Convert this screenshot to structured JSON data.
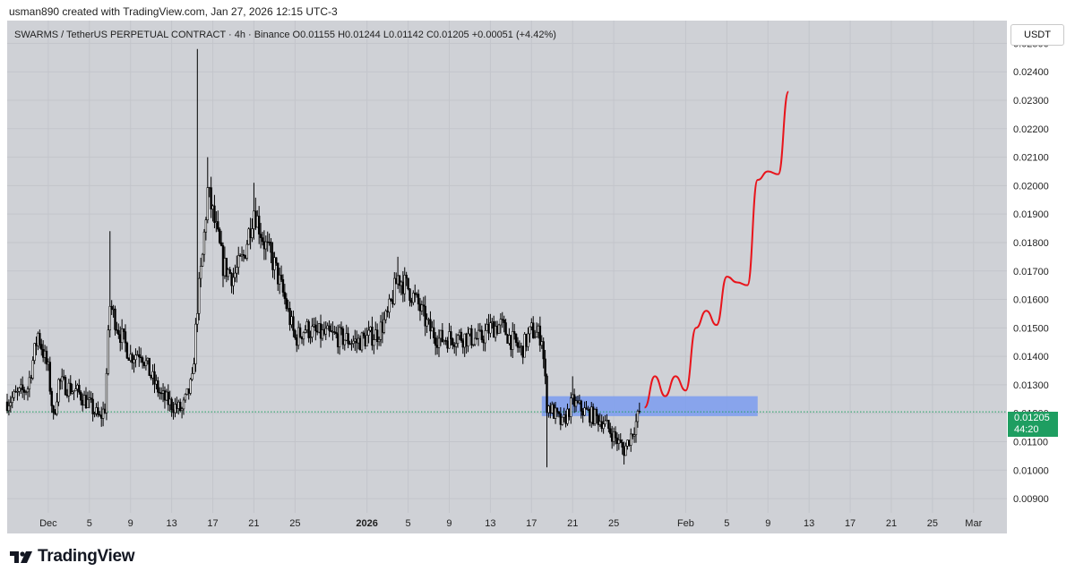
{
  "header": {
    "created_line": "usman890 created with TradingView.com, Jan 27, 2026 12:15 UTC-3"
  },
  "symbol_info": {
    "text": "SWARMS / TetherUS PERPETUAL CONTRACT · 4h · Binance  O0.01155  H0.01244  L0.01142  C0.01205  +0.00051 (+4.42%)"
  },
  "currency_button": "USDT",
  "last_price": {
    "value": "0.01205",
    "countdown": "44:20",
    "color": "#1e9e61"
  },
  "brand": {
    "name": "TradingView",
    "icon": "tradingview-logo-icon"
  },
  "colors": {
    "background": "#cfd1d6",
    "candles": "#000000",
    "zone": "#7b9cf0",
    "projection": "#e8141b"
  },
  "chart_data": {
    "type": "candlestick",
    "timeframe": "4h",
    "ylim": [
      0.0085,
      0.0258
    ],
    "y_ticks": [
      "0.02500",
      "0.02400",
      "0.02300",
      "0.02200",
      "0.02100",
      "0.02000",
      "0.01900",
      "0.01800",
      "0.01700",
      "0.01600",
      "0.01500",
      "0.01400",
      "0.01300",
      "0.01200",
      "0.01100",
      "0.01000",
      "0.00900"
    ],
    "x_ticks": [
      "Dec",
      "5",
      "9",
      "13",
      "17",
      "21",
      "25",
      "2026",
      "5",
      "9",
      "13",
      "17",
      "21",
      "25",
      "Feb",
      "5",
      "9",
      "13",
      "17",
      "21",
      "25",
      "Mar"
    ],
    "price_path": [
      {
        "date": "2025-11-27",
        "price": 0.0124
      },
      {
        "date": "2025-11-29",
        "price": 0.0129
      },
      {
        "date": "2025-11-30",
        "price": 0.0148
      },
      {
        "date": "2025-12-01",
        "price": 0.0135
      },
      {
        "date": "2025-12-01T12",
        "price": 0.0118
      },
      {
        "date": "2025-12-02",
        "price": 0.0131
      },
      {
        "date": "2025-12-04",
        "price": 0.0127
      },
      {
        "date": "2025-12-05",
        "price": 0.0123
      },
      {
        "date": "2025-12-06",
        "price": 0.0118
      },
      {
        "date": "2025-12-06T12",
        "price": 0.0122
      },
      {
        "date": "2025-12-07",
        "price": 0.0158
      },
      {
        "date": "2025-12-08",
        "price": 0.0148
      },
      {
        "date": "2025-12-09",
        "price": 0.014
      },
      {
        "date": "2025-12-10",
        "price": 0.0142
      },
      {
        "date": "2025-12-11",
        "price": 0.0133
      },
      {
        "date": "2025-12-12",
        "price": 0.0126
      },
      {
        "date": "2025-12-13",
        "price": 0.0123
      },
      {
        "date": "2025-12-14",
        "price": 0.0121
      },
      {
        "date": "2025-12-15",
        "price": 0.0131
      },
      {
        "date": "2025-12-15T12",
        "price": 0.0158
      },
      {
        "date": "2025-12-16",
        "price": 0.0175
      },
      {
        "date": "2025-12-16T12",
        "price": 0.0198
      },
      {
        "date": "2025-12-17",
        "price": 0.019
      },
      {
        "date": "2025-12-18",
        "price": 0.0172
      },
      {
        "date": "2025-12-19",
        "price": 0.0168
      },
      {
        "date": "2025-12-20",
        "price": 0.0175
      },
      {
        "date": "2025-12-21",
        "price": 0.0192
      },
      {
        "date": "2025-12-22",
        "price": 0.018
      },
      {
        "date": "2025-12-23",
        "price": 0.0172
      },
      {
        "date": "2025-12-24",
        "price": 0.016
      },
      {
        "date": "2025-12-25",
        "price": 0.0146
      },
      {
        "date": "2025-12-26",
        "price": 0.015
      },
      {
        "date": "2025-12-27",
        "price": 0.0148
      },
      {
        "date": "2025-12-29",
        "price": 0.0147
      },
      {
        "date": "2025-12-31",
        "price": 0.0145
      },
      {
        "date": "2026-01-02",
        "price": 0.0148
      },
      {
        "date": "2026-01-03",
        "price": 0.0154
      },
      {
        "date": "2026-01-04",
        "price": 0.0168
      },
      {
        "date": "2026-01-05",
        "price": 0.0164
      },
      {
        "date": "2026-01-06",
        "price": 0.0158
      },
      {
        "date": "2026-01-07",
        "price": 0.015
      },
      {
        "date": "2026-01-08",
        "price": 0.0146
      },
      {
        "date": "2026-01-10",
        "price": 0.0147
      },
      {
        "date": "2026-01-12",
        "price": 0.0146
      },
      {
        "date": "2026-01-13",
        "price": 0.015
      },
      {
        "date": "2026-01-14",
        "price": 0.0151
      },
      {
        "date": "2026-01-15",
        "price": 0.0146
      },
      {
        "date": "2026-01-16",
        "price": 0.0142
      },
      {
        "date": "2026-01-17",
        "price": 0.0149
      },
      {
        "date": "2026-01-18",
        "price": 0.0147
      },
      {
        "date": "2026-01-18T12",
        "price": 0.0123
      },
      {
        "date": "2026-01-19",
        "price": 0.0121
      },
      {
        "date": "2026-01-20",
        "price": 0.0116
      },
      {
        "date": "2026-01-21",
        "price": 0.0124
      },
      {
        "date": "2026-01-22",
        "price": 0.0121
      },
      {
        "date": "2026-01-23",
        "price": 0.0119
      },
      {
        "date": "2026-01-24",
        "price": 0.0117
      },
      {
        "date": "2026-01-25",
        "price": 0.0112
      },
      {
        "date": "2026-01-26",
        "price": 0.0107
      },
      {
        "date": "2026-01-27",
        "price": 0.0115
      },
      {
        "date": "2026-01-27T12",
        "price": 0.01205
      }
    ],
    "wicks": [
      {
        "date": "2025-12-07",
        "high": 0.0184
      },
      {
        "date": "2025-12-15T12",
        "high": 0.0248
      },
      {
        "date": "2025-12-16T12",
        "high": 0.021
      },
      {
        "date": "2025-12-21",
        "high": 0.0201
      },
      {
        "date": "2026-01-04",
        "high": 0.0175
      },
      {
        "date": "2026-01-18T12",
        "low": 0.0101
      },
      {
        "date": "2026-01-21",
        "high": 0.0133
      },
      {
        "date": "2026-01-26",
        "low": 0.0102
      }
    ],
    "zone": {
      "from": "2026-01-18",
      "to": "2026-02-08",
      "top": 0.0126,
      "bottom": 0.0119
    },
    "projection": [
      {
        "date": "2026-01-28",
        "price": 0.0122
      },
      {
        "date": "2026-01-29",
        "price": 0.0133
      },
      {
        "date": "2026-01-30",
        "price": 0.0126
      },
      {
        "date": "2026-01-31",
        "price": 0.0133
      },
      {
        "date": "2026-02-01",
        "price": 0.0128
      },
      {
        "date": "2026-02-02",
        "price": 0.015
      },
      {
        "date": "2026-02-03",
        "price": 0.0156
      },
      {
        "date": "2026-02-04",
        "price": 0.0151
      },
      {
        "date": "2026-02-05",
        "price": 0.0168
      },
      {
        "date": "2026-02-06",
        "price": 0.0166
      },
      {
        "date": "2026-02-07",
        "price": 0.0165
      },
      {
        "date": "2026-02-08",
        "price": 0.0202
      },
      {
        "date": "2026-02-09",
        "price": 0.0205
      },
      {
        "date": "2026-02-10",
        "price": 0.0204
      },
      {
        "date": "2026-02-11",
        "price": 0.0233
      }
    ]
  }
}
